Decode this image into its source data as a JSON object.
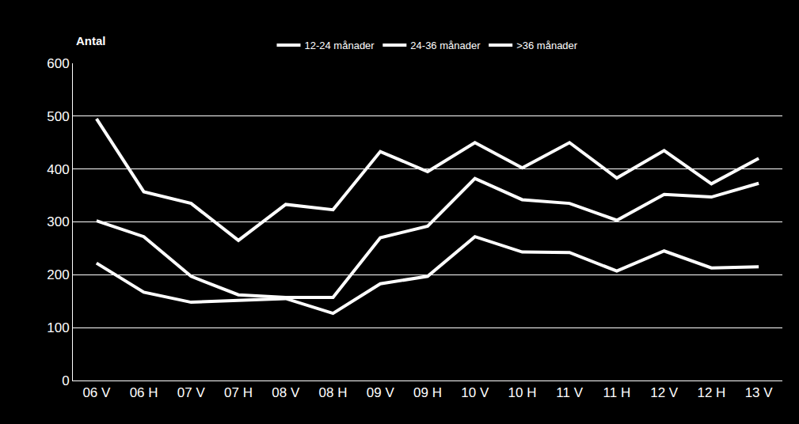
{
  "chart_data": {
    "type": "line",
    "y_label": "Antal",
    "categories": [
      "06 V",
      "06 H",
      "07 V",
      "07 H",
      "08 V",
      "08 H",
      "09 V",
      "09 H",
      "10 V",
      "10 H",
      "11 V",
      "11 H",
      "12 V",
      "12 H",
      "13 V"
    ],
    "series": [
      {
        "name": "12-24 månader",
        "color": "#ffffff",
        "values": [
          495,
          357,
          335,
          265,
          333,
          323,
          433,
          395,
          450,
          402,
          450,
          383,
          435,
          372,
          420
        ]
      },
      {
        "name": "24-36 månader",
        "color": "#ffffff",
        "values": [
          302,
          272,
          197,
          162,
          157,
          157,
          270,
          292,
          382,
          342,
          335,
          303,
          352,
          347,
          373
        ]
      },
      {
        "name": ">36 månader",
        "color": "#ffffff",
        "values": [
          222,
          167,
          148,
          152,
          155,
          127,
          183,
          197,
          272,
          243,
          242,
          207,
          245,
          213,
          215
        ]
      }
    ],
    "ylim": [
      0,
      600
    ],
    "yticks": [
      0,
      100,
      200,
      300,
      400,
      500,
      600
    ],
    "grid": true,
    "legend": "top"
  }
}
